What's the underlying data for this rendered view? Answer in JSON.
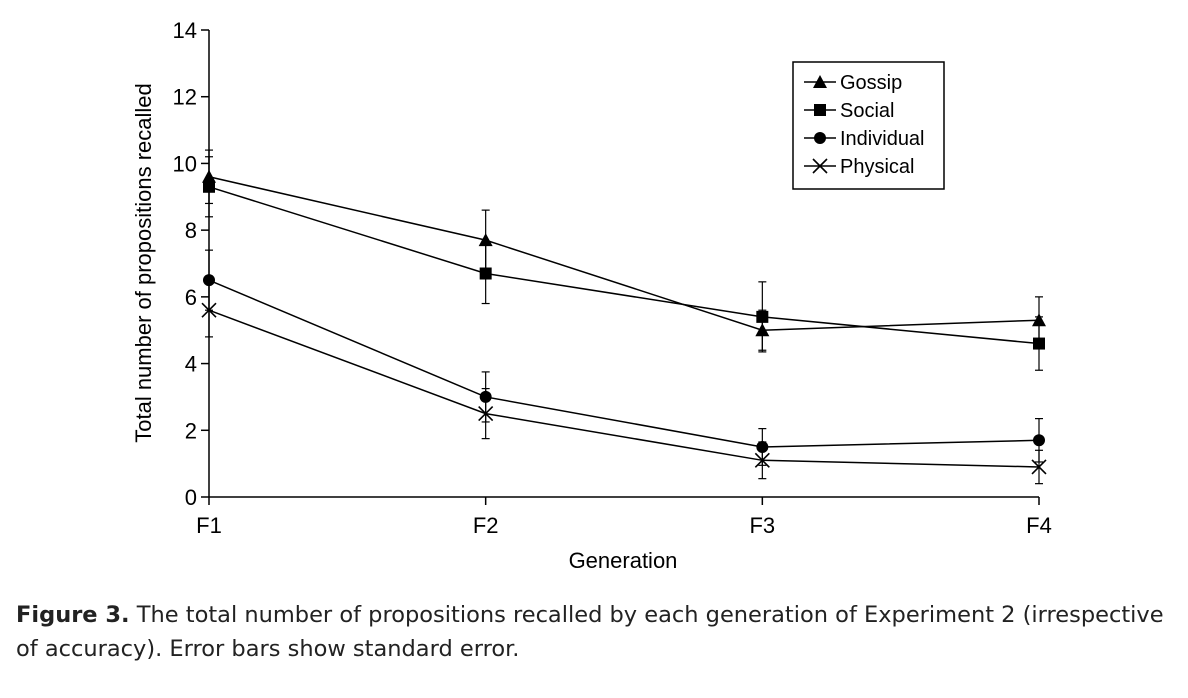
{
  "chart_data": {
    "type": "line",
    "xlabel": "Generation",
    "ylabel": "Total number of propositions recalled",
    "categories": [
      "F1",
      "F2",
      "F3",
      "F4"
    ],
    "ylim": [
      0,
      14
    ],
    "yticks": [
      0,
      2,
      4,
      6,
      8,
      10,
      12,
      14
    ],
    "error_bars": "standard error",
    "legend_position": "top-right",
    "series": [
      {
        "name": "Gossip",
        "marker": "triangle",
        "values": [
          9.6,
          7.7,
          5.0,
          5.3
        ],
        "errors": [
          0.8,
          0.9,
          0.6,
          0.7
        ]
      },
      {
        "name": "Social",
        "marker": "square",
        "values": [
          9.3,
          6.7,
          5.4,
          4.6
        ],
        "errors": [
          0.9,
          0.9,
          1.05,
          0.8
        ]
      },
      {
        "name": "Individual",
        "marker": "circle",
        "values": [
          6.5,
          3.0,
          1.5,
          1.7
        ],
        "errors": [
          0.9,
          0.75,
          0.55,
          0.65
        ]
      },
      {
        "name": "Physical",
        "marker": "x",
        "values": [
          5.6,
          2.5,
          1.1,
          0.9
        ],
        "errors": [
          0.8,
          0.75,
          0.55,
          0.5
        ]
      }
    ]
  },
  "caption": {
    "label": "Figure 3.",
    "text": " The total number of propositions recalled by each generation of Experiment 2 (irrespective of accuracy). Error bars show standard error."
  }
}
